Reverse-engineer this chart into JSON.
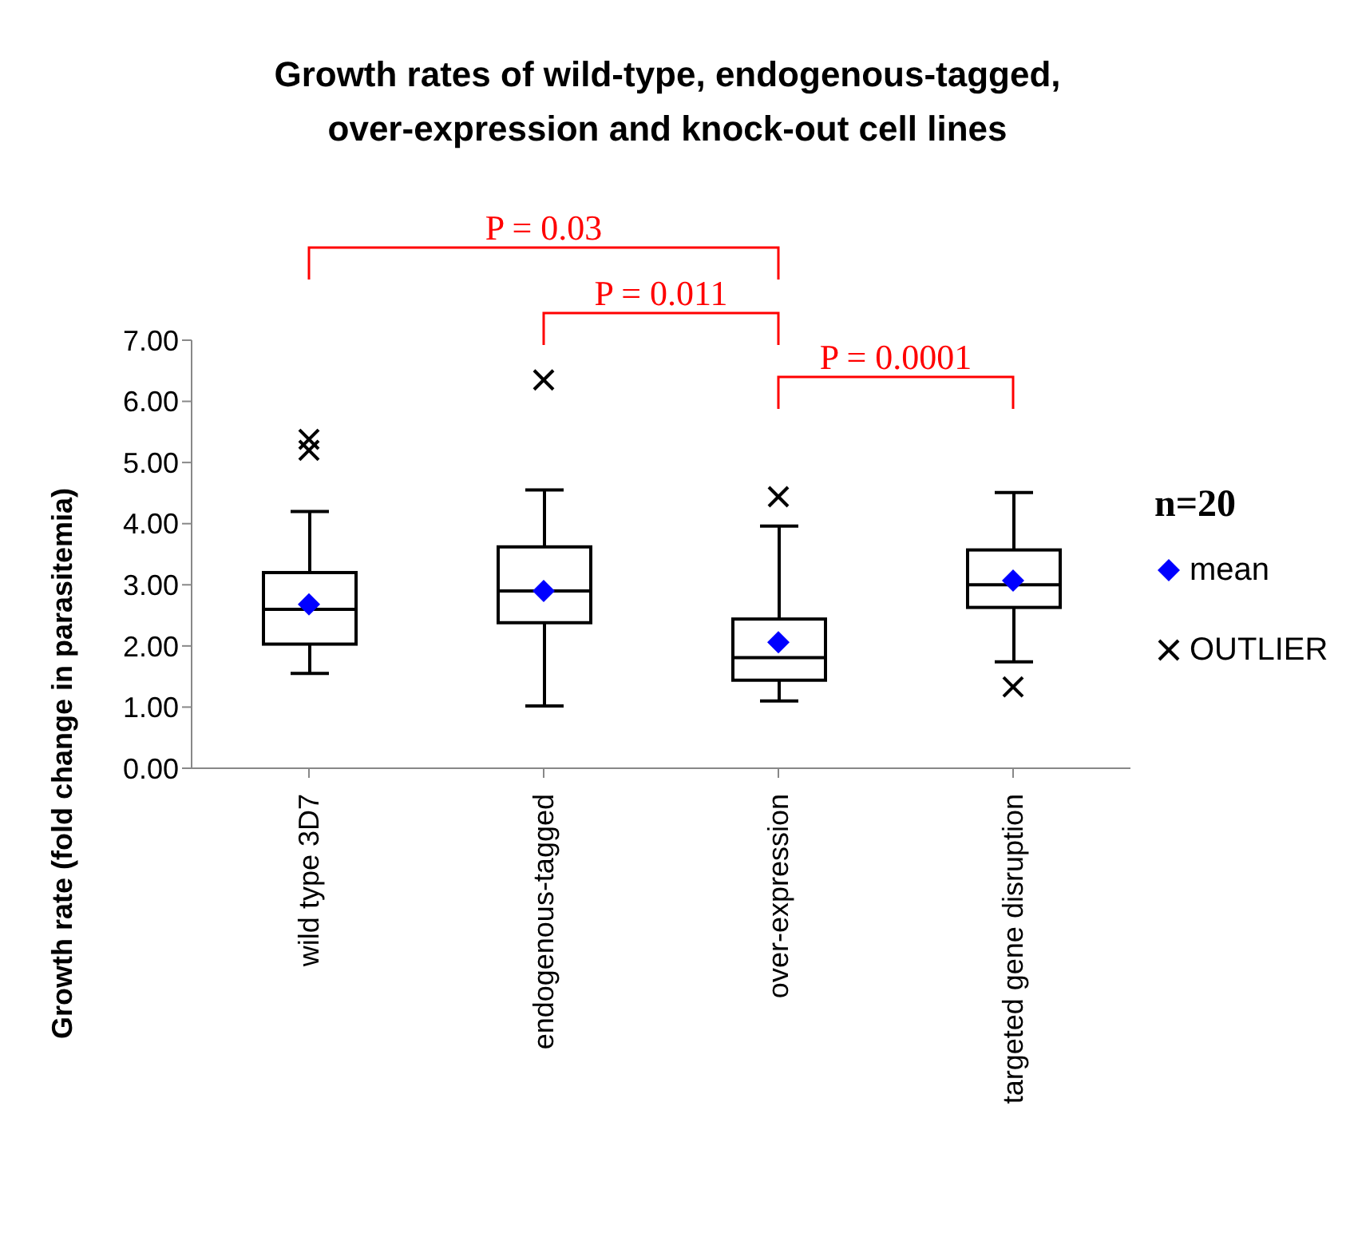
{
  "chart_data": {
    "type": "box",
    "title": "Growth rates of wild-type, endogenous-tagged,\nover-expression and knock-out cell lines",
    "ylabel": "Growth rate (fold change in parasitemia)",
    "legend_title": "n=20",
    "legend": "right",
    "grid": false,
    "categories": [
      "wild type 3D7",
      "endogenous-tagged",
      "over-expression",
      "targeted gene disruption"
    ],
    "ylim": [
      0,
      7
    ],
    "yticks": [
      {
        "value": 0,
        "label": "0.00"
      },
      {
        "value": 1,
        "label": "1.00"
      },
      {
        "value": 2,
        "label": "2.00"
      },
      {
        "value": 3,
        "label": "3.00"
      },
      {
        "value": 4,
        "label": "4.00"
      },
      {
        "value": 5,
        "label": "5.00"
      },
      {
        "value": 6,
        "label": "6.00"
      },
      {
        "value": 7,
        "label": "7.00"
      }
    ],
    "series": [
      {
        "type": "box",
        "color": "#000000",
        "boxes": [
          {
            "low": 1.55,
            "q1": 2.03,
            "median": 2.6,
            "q3": 3.2,
            "high": 4.2
          },
          {
            "low": 1.02,
            "q1": 2.38,
            "median": 2.9,
            "q3": 3.62,
            "high": 4.55
          },
          {
            "low": 1.1,
            "q1": 1.44,
            "median": 1.81,
            "q3": 2.44,
            "high": 3.96
          },
          {
            "low": 1.74,
            "q1": 2.63,
            "median": 3.0,
            "q3": 3.57,
            "high": 4.51
          }
        ]
      },
      {
        "type": "scatter",
        "name": "mean",
        "color": "#0000ff",
        "marker": "diamond",
        "x": [
          "wild type 3D7",
          "endogenous-tagged",
          "over-expression",
          "targeted gene disruption"
        ],
        "values": [
          2.68,
          2.9,
          2.06,
          3.07
        ]
      },
      {
        "type": "scatter",
        "name": "OUTLIER",
        "color": "#000000",
        "marker": "cross",
        "x": [
          "wild type 3D7",
          "wild type 3D7",
          "endogenous-tagged",
          "over-expression",
          "targeted gene disruption"
        ],
        "values": [
          5.2,
          5.38,
          6.35,
          4.44,
          1.33
        ]
      }
    ],
    "annotations": [
      "P = 0.03",
      "P = 0.011",
      "P = 0.0001"
    ]
  }
}
